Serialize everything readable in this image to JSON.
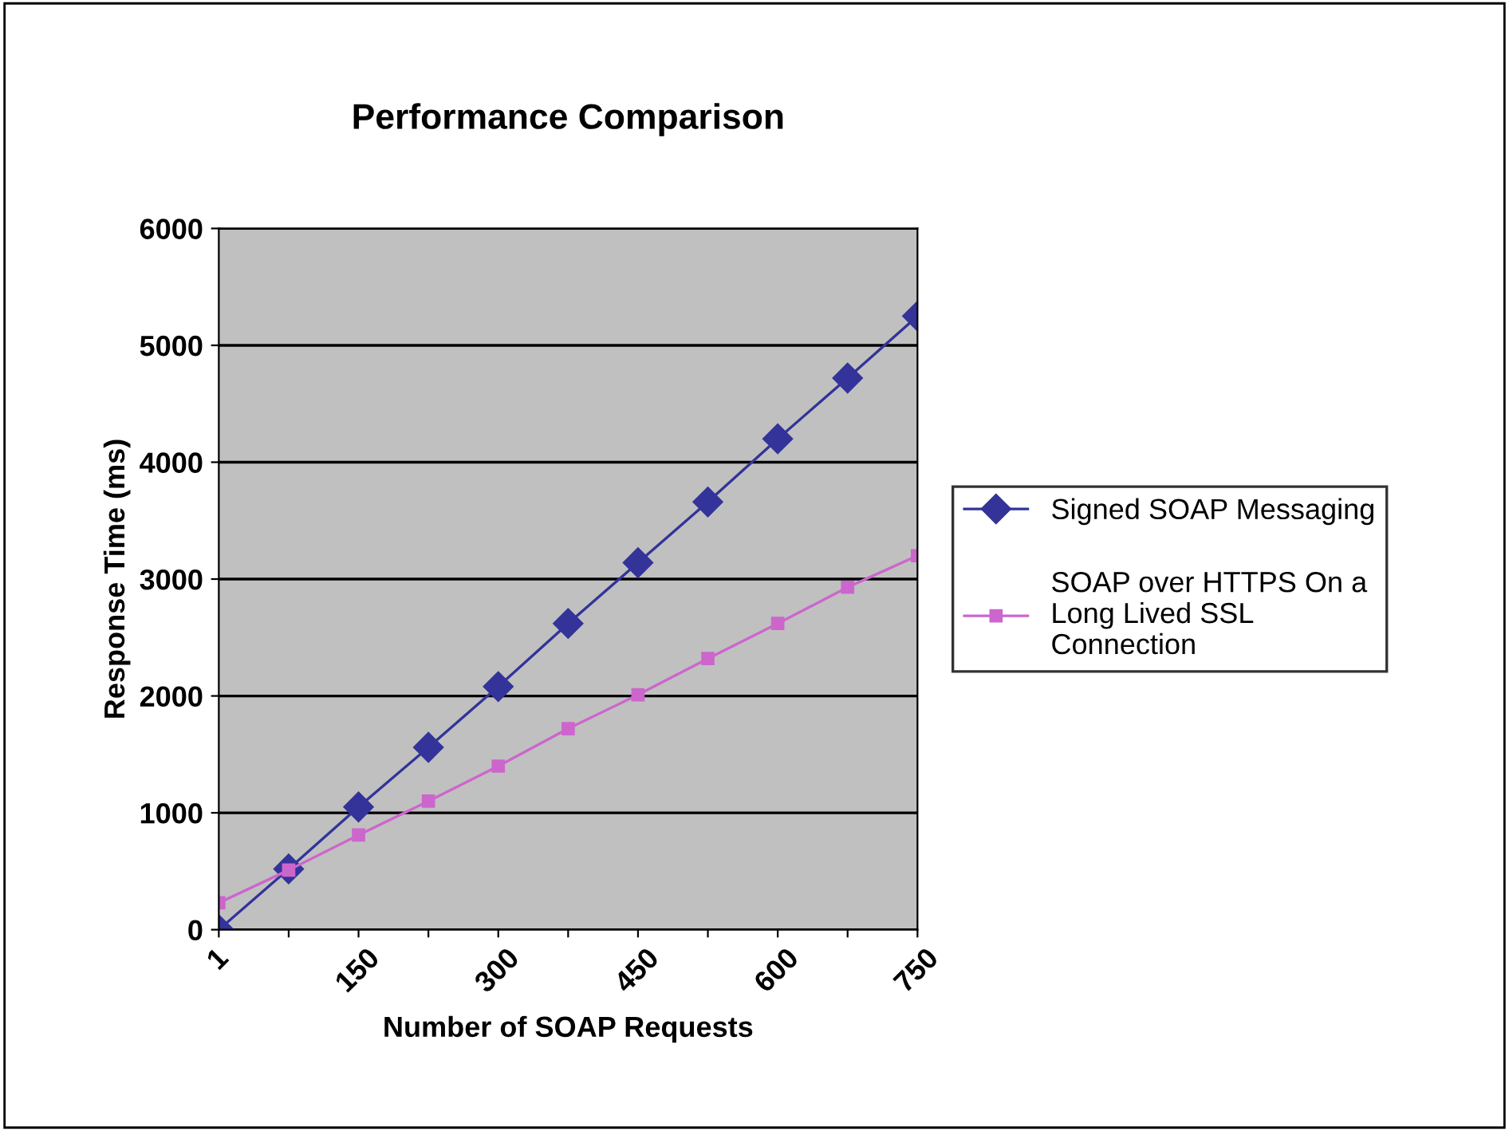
{
  "chart_data": {
    "type": "line",
    "title": "Performance Comparison",
    "xlabel": "Number of SOAP Requests",
    "ylabel": "Response Time (ms)",
    "categories": [
      "1",
      null,
      "150",
      null,
      "300",
      null,
      "450",
      null,
      "600",
      null,
      "750"
    ],
    "series": [
      {
        "name": "Signed SOAP Messaging",
        "color": "#333399",
        "marker": "diamond",
        "values": [
          0,
          520,
          1050,
          1560,
          2080,
          2620,
          3140,
          3660,
          4200,
          4720,
          5250
        ]
      },
      {
        "name": "SOAP over HTTPS On a Long Lived SSL Connection",
        "color": "#cc66cc",
        "marker": "square",
        "values": [
          230,
          510,
          810,
          1100,
          1400,
          1720,
          2010,
          2320,
          2620,
          2930,
          3200
        ]
      }
    ],
    "ylim": [
      0,
      6000
    ],
    "yticks": [
      0,
      1000,
      2000,
      3000,
      4000,
      5000,
      6000
    ],
    "grid": "y",
    "legend": "right"
  }
}
